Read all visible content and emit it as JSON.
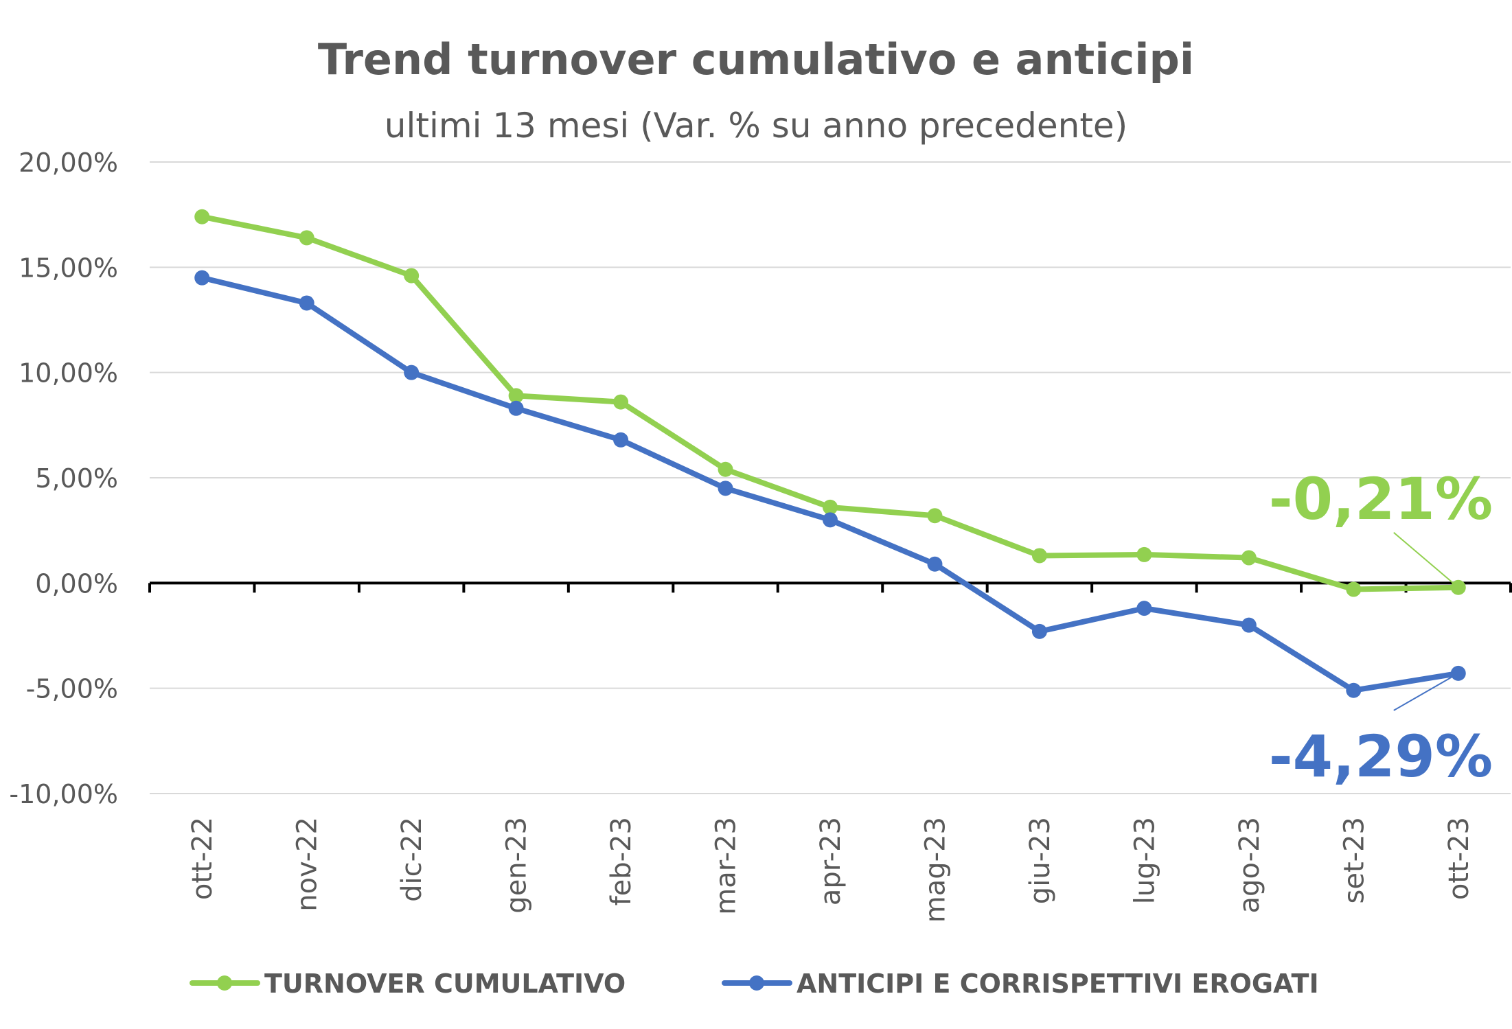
{
  "chart_data": {
    "type": "line",
    "title": "Trend turnover cumulativo e anticipi",
    "subtitle": "ultimi 13 mesi (Var. % su anno precedente)",
    "categories": [
      "ott-22",
      "nov-22",
      "dic-22",
      "gen-23",
      "feb-23",
      "mar-23",
      "apr-23",
      "mag-23",
      "giu-23",
      "lug-23",
      "ago-23",
      "set-23",
      "ott-23"
    ],
    "ylim": [
      -10,
      20
    ],
    "yticks": [
      20,
      15,
      10,
      5,
      0,
      -5,
      -10
    ],
    "ytick_labels": [
      "20,00%",
      "15,00%",
      "10,00%",
      "5,00%",
      "0,00%",
      "-5,00%",
      "-10,00%"
    ],
    "grid": true,
    "legend_position": "bottom",
    "series": [
      {
        "name": "TURNOVER CUMULATIVO",
        "color": "#92d050",
        "values": [
          17.4,
          16.4,
          14.6,
          8.9,
          8.6,
          5.4,
          3.6,
          3.2,
          1.3,
          1.35,
          1.2,
          -0.3,
          -0.21
        ]
      },
      {
        "name": "ANTICIPI E CORRISPETTIVI EROGATI",
        "color": "#4472c4",
        "values": [
          14.5,
          13.3,
          10.0,
          8.3,
          6.8,
          4.5,
          3.0,
          0.9,
          -2.3,
          -1.2,
          -2.0,
          -5.1,
          -4.29
        ]
      }
    ],
    "annotations": [
      {
        "text": "-0,21%",
        "series": 0,
        "point": 12,
        "color": "#92d050"
      },
      {
        "text": "-4,29%",
        "series": 1,
        "point": 12,
        "color": "#4472c4"
      }
    ]
  }
}
